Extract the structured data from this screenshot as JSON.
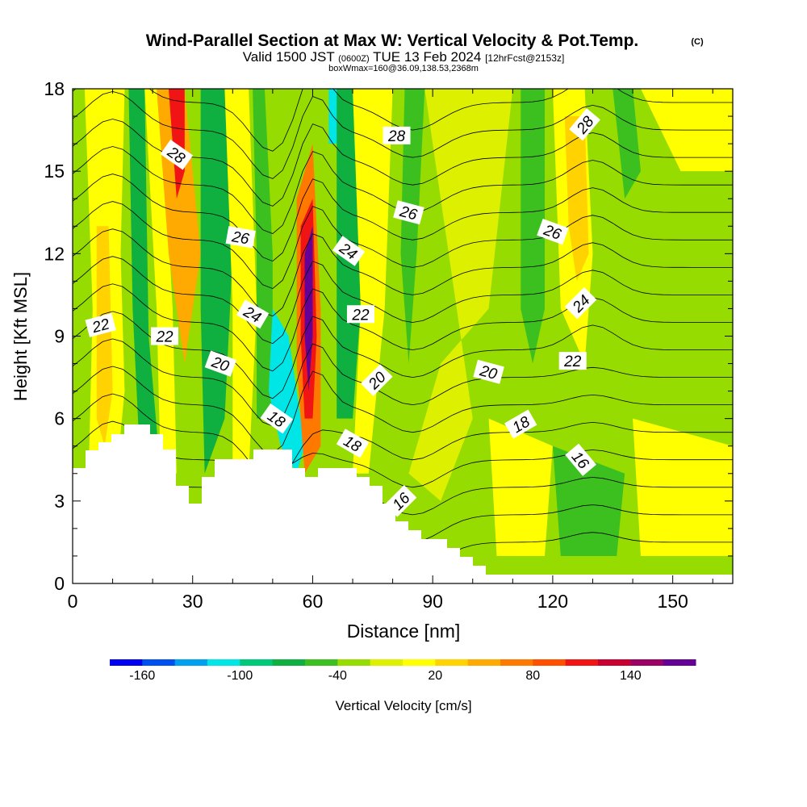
{
  "chart_data": {
    "type": "heatmap",
    "title": "Wind-Parallel Section at Max W: Vertical Velocity & Pot.Temp.",
    "title_mark": "(C)",
    "subtitle_main": "Valid 1500 JST",
    "subtitle_z": "(0600Z)",
    "subtitle_date": "TUE 13 Feb 2024",
    "subtitle_fcst": "[12hrFcst@2153z]",
    "subtitle3": "boxWmax=160@36.09,138.53,2368m",
    "xlabel": "Distance [nm]",
    "ylabel": "Height [Kft MSL]",
    "xlim": [
      0,
      165
    ],
    "ylim": [
      0,
      18
    ],
    "x_ticks": [
      "0",
      "30",
      "60",
      "90",
      "120",
      "150"
    ],
    "y_ticks": [
      "0",
      "3",
      "6",
      "9",
      "12",
      "15",
      "18"
    ],
    "colorbar": {
      "label": "Vertical Velocity [cm/s]",
      "tick_labels": [
        "-160",
        "-100",
        "-40",
        "20",
        "80",
        "140"
      ],
      "colors": [
        "#0000f0",
        "#0050f0",
        "#00a0f0",
        "#00e6e6",
        "#00c87a",
        "#10b040",
        "#3cc020",
        "#96dc00",
        "#dcf000",
        "#ffff00",
        "#ffd200",
        "#ffaa00",
        "#ff7800",
        "#ff5000",
        "#f01414",
        "#c80032",
        "#9b0064",
        "#640096"
      ]
    },
    "theta_contour_labels": [
      {
        "text": "28",
        "x": 26,
        "y": 15.6,
        "rot": 35
      },
      {
        "text": "28",
        "x": 81,
        "y": 16.3,
        "rot": 0
      },
      {
        "text": "28",
        "x": 128,
        "y": 16.7,
        "rot": -50
      },
      {
        "text": "26",
        "x": 42,
        "y": 12.6,
        "rot": 10
      },
      {
        "text": "26",
        "x": 84,
        "y": 13.5,
        "rot": 15
      },
      {
        "text": "26",
        "x": 120,
        "y": 12.8,
        "rot": 20
      },
      {
        "text": "24",
        "x": 45,
        "y": 9.8,
        "rot": 30
      },
      {
        "text": "24",
        "x": 69,
        "y": 12.1,
        "rot": 35
      },
      {
        "text": "24",
        "x": 127,
        "y": 10.2,
        "rot": -45
      },
      {
        "text": "22",
        "x": 7,
        "y": 9.4,
        "rot": -15
      },
      {
        "text": "22",
        "x": 23,
        "y": 9.0,
        "rot": 0
      },
      {
        "text": "22",
        "x": 72,
        "y": 9.8,
        "rot": 0
      },
      {
        "text": "22",
        "x": 125,
        "y": 8.1,
        "rot": 0
      },
      {
        "text": "20",
        "x": 37,
        "y": 8.0,
        "rot": 20
      },
      {
        "text": "20",
        "x": 76,
        "y": 7.4,
        "rot": -45
      },
      {
        "text": "20",
        "x": 104,
        "y": 7.7,
        "rot": 15
      },
      {
        "text": "18",
        "x": 51,
        "y": 6.0,
        "rot": 35
      },
      {
        "text": "18",
        "x": 70,
        "y": 5.1,
        "rot": 30
      },
      {
        "text": "18",
        "x": 112,
        "y": 5.8,
        "rot": -30
      },
      {
        "text": "16",
        "x": 82,
        "y": 3.0,
        "rot": -45
      },
      {
        "text": "16",
        "x": 127,
        "y": 4.5,
        "rot": 50
      }
    ]
  }
}
